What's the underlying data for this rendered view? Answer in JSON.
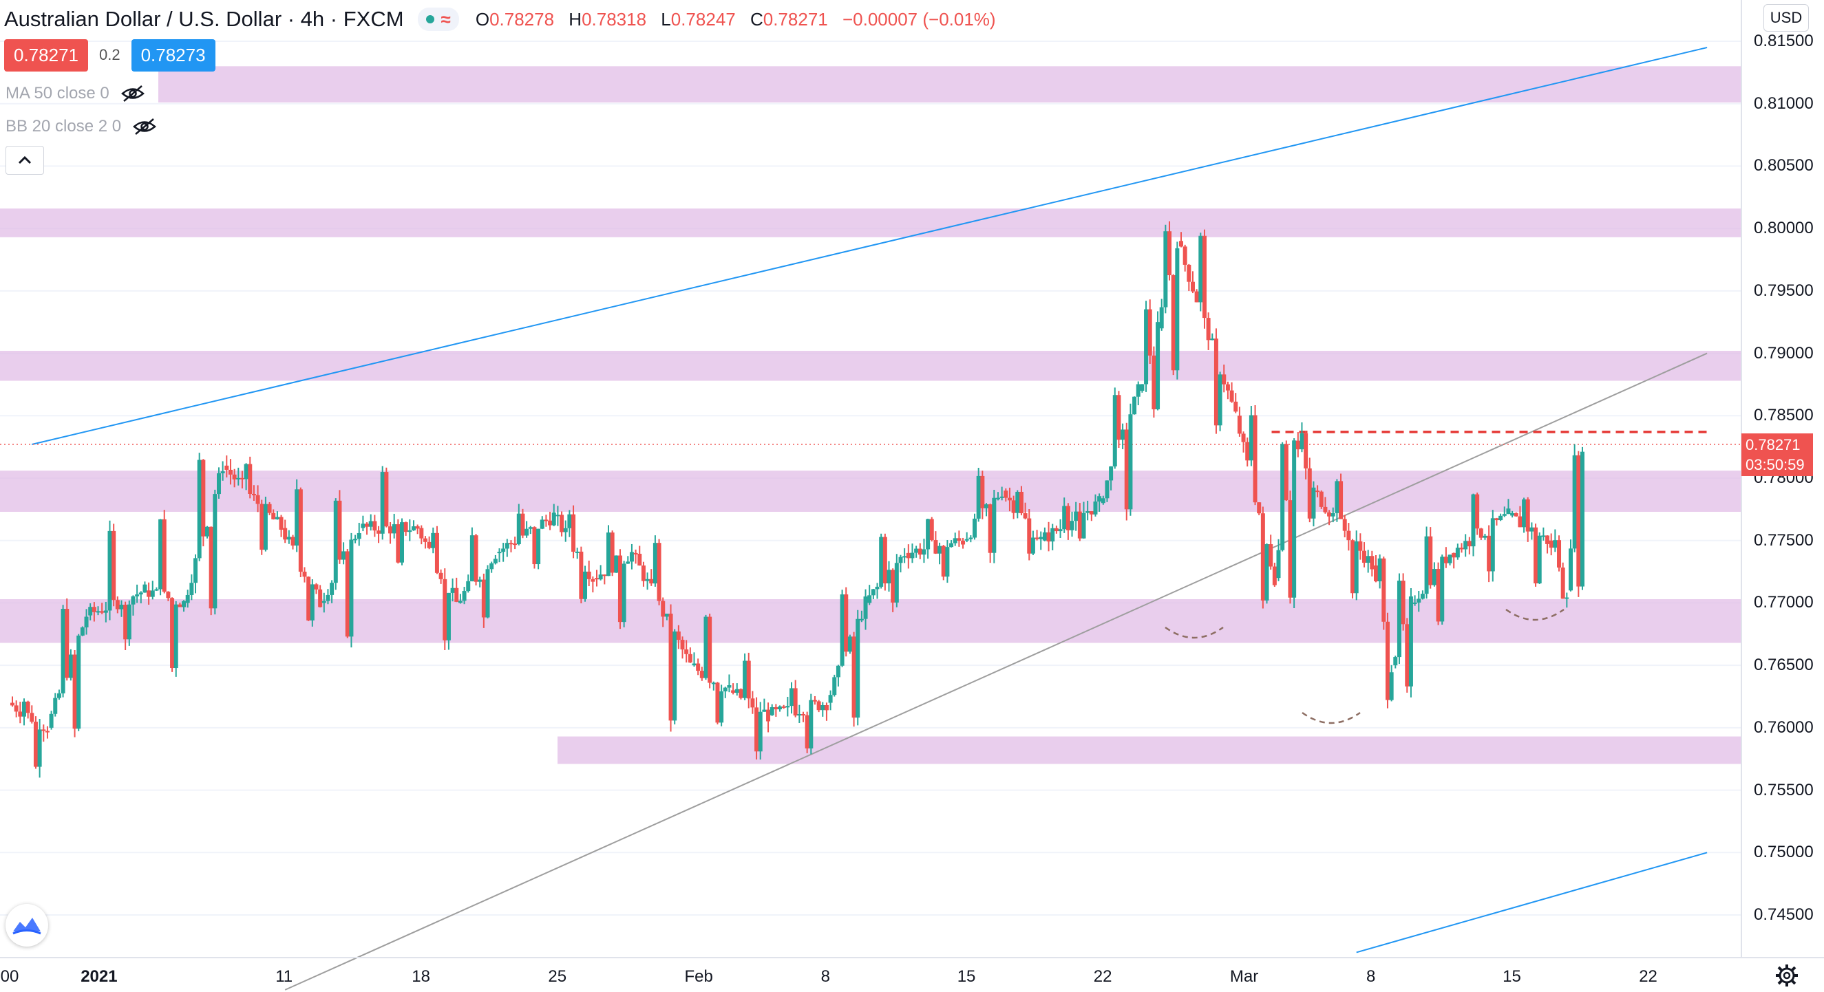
{
  "header": {
    "title": "Australian Dollar / U.S. Dollar · 4h · FXCM",
    "ohlc": {
      "o_label": "O",
      "o": "0.78278",
      "h_label": "H",
      "h": "0.78318",
      "l_label": "L",
      "l": "0.78247",
      "c_label": "C",
      "c": "0.78271",
      "change": "−0.00007 (−0.01%)"
    },
    "status_icon": "market-open-dot",
    "wave_icon": "wave-icon"
  },
  "trade": {
    "sell_price": "0.78271",
    "spread": "0.2",
    "buy_price": "0.78273"
  },
  "indicators": [
    {
      "label": "MA 50 close 0",
      "icon": "eye-hidden-icon"
    },
    {
      "label": "BB 20 close 2 0",
      "icon": "eye-hidden-icon"
    }
  ],
  "currency_button": "USD",
  "last_price": {
    "price": "0.78271",
    "countdown": "03:50:59",
    "color": "#ef5350"
  },
  "price_axis_labels": [
    "0.81500",
    "0.81000",
    "0.80500",
    "0.80000",
    "0.79500",
    "0.79000",
    "0.78500",
    "0.78000",
    "0.77500",
    "0.77000",
    "0.76500",
    "0.76000",
    "0.75500",
    "0.75000",
    "0.74500"
  ],
  "time_axis_labels": [
    ":00",
    "2021",
    "11",
    "18",
    "25",
    "Feb",
    "8",
    "15",
    "22",
    "Mar",
    "8",
    "15",
    "22"
  ],
  "colors": {
    "up": "#26a69a",
    "down": "#ef5350",
    "zone": "#e1bee7",
    "trend_blue": "#2196f3",
    "trend_gray": "#9e9e9e"
  },
  "chart_data": {
    "type": "candlestick",
    "symbol": "AUDUSD",
    "timeframe": "4h",
    "ylim": [
      0.742,
      0.817
    ],
    "resistance_support_zones": [
      [
        0.8101,
        0.813
      ],
      [
        0.7993,
        0.8016
      ],
      [
        0.7878,
        0.7902
      ],
      [
        0.7773,
        0.7806
      ],
      [
        0.7668,
        0.7703
      ],
      [
        0.7571,
        0.7593
      ]
    ],
    "neckline_level": 0.7837,
    "last_price_line": 0.78271,
    "trendlines": [
      {
        "color": "blue",
        "from": [
          "Dec 29",
          0.7827
        ],
        "to": [
          "Mar 25",
          0.8145
        ]
      },
      {
        "color": "gray",
        "from": [
          "Jan 11",
          0.739
        ],
        "to": [
          "Mar 25",
          0.79
        ]
      },
      {
        "color": "blue",
        "from": [
          "Mar 7",
          0.742
        ],
        "to": [
          "Mar 25",
          0.75
        ]
      }
    ],
    "candles_daily_approx": [
      {
        "date": "Dec 28",
        "o": 0.762,
        "h": 0.763,
        "l": 0.756,
        "c": 0.76
      },
      {
        "date": "Dec 30",
        "o": 0.76,
        "h": 0.77,
        "l": 0.759,
        "c": 0.769
      },
      {
        "date": "Jan 1",
        "o": 0.769,
        "h": 0.776,
        "l": 0.766,
        "c": 0.771
      },
      {
        "date": "Jan 4",
        "o": 0.771,
        "h": 0.778,
        "l": 0.764,
        "c": 0.77
      },
      {
        "date": "Jan 6",
        "o": 0.77,
        "h": 0.782,
        "l": 0.769,
        "c": 0.781
      },
      {
        "date": "Jan 8",
        "o": 0.781,
        "h": 0.782,
        "l": 0.774,
        "c": 0.776
      },
      {
        "date": "Jan 11",
        "o": 0.776,
        "h": 0.78,
        "l": 0.768,
        "c": 0.77
      },
      {
        "date": "Jan 13",
        "o": 0.77,
        "h": 0.779,
        "l": 0.767,
        "c": 0.776
      },
      {
        "date": "Jan 15",
        "o": 0.776,
        "h": 0.781,
        "l": 0.772,
        "c": 0.776
      },
      {
        "date": "Jan 18",
        "o": 0.776,
        "h": 0.777,
        "l": 0.766,
        "c": 0.77
      },
      {
        "date": "Jan 20",
        "o": 0.77,
        "h": 0.776,
        "l": 0.768,
        "c": 0.774
      },
      {
        "date": "Jan 22",
        "o": 0.774,
        "h": 0.778,
        "l": 0.772,
        "c": 0.777
      },
      {
        "date": "Jan 25",
        "o": 0.777,
        "h": 0.778,
        "l": 0.77,
        "c": 0.772
      },
      {
        "date": "Jan 27",
        "o": 0.772,
        "h": 0.776,
        "l": 0.768,
        "c": 0.774
      },
      {
        "date": "Jan 29",
        "o": 0.774,
        "h": 0.776,
        "l": 0.76,
        "c": 0.765
      },
      {
        "date": "Feb 1",
        "o": 0.765,
        "h": 0.77,
        "l": 0.76,
        "c": 0.763
      },
      {
        "date": "Feb 3",
        "o": 0.763,
        "h": 0.766,
        "l": 0.757,
        "c": 0.761
      },
      {
        "date": "Feb 5",
        "o": 0.761,
        "h": 0.764,
        "l": 0.758,
        "c": 0.762
      },
      {
        "date": "Feb 8",
        "o": 0.762,
        "h": 0.772,
        "l": 0.76,
        "c": 0.77
      },
      {
        "date": "Feb 10",
        "o": 0.77,
        "h": 0.776,
        "l": 0.769,
        "c": 0.774
      },
      {
        "date": "Feb 12",
        "o": 0.774,
        "h": 0.777,
        "l": 0.771,
        "c": 0.775
      },
      {
        "date": "Feb 15",
        "o": 0.775,
        "h": 0.781,
        "l": 0.773,
        "c": 0.779
      },
      {
        "date": "Feb 17",
        "o": 0.779,
        "h": 0.78,
        "l": 0.773,
        "c": 0.775
      },
      {
        "date": "Feb 19",
        "o": 0.775,
        "h": 0.779,
        "l": 0.774,
        "c": 0.778
      },
      {
        "date": "Feb 22",
        "o": 0.778,
        "h": 0.788,
        "l": 0.777,
        "c": 0.787
      },
      {
        "date": "Feb 24",
        "o": 0.787,
        "h": 0.794,
        "l": 0.785,
        "c": 0.792
      },
      {
        "date": "Feb 25",
        "o": 0.792,
        "h": 0.801,
        "l": 0.788,
        "c": 0.799
      },
      {
        "date": "Feb 26",
        "o": 0.799,
        "h": 0.8,
        "l": 0.783,
        "c": 0.785
      },
      {
        "date": "Mar 1",
        "o": 0.785,
        "h": 0.786,
        "l": 0.769,
        "c": 0.772
      },
      {
        "date": "Mar 3",
        "o": 0.772,
        "h": 0.784,
        "l": 0.77,
        "c": 0.783
      },
      {
        "date": "Mar 4",
        "o": 0.783,
        "h": 0.784,
        "l": 0.776,
        "c": 0.779
      },
      {
        "date": "Mar 5",
        "o": 0.779,
        "h": 0.781,
        "l": 0.77,
        "c": 0.773
      },
      {
        "date": "Mar 8",
        "o": 0.773,
        "h": 0.774,
        "l": 0.762,
        "c": 0.765
      },
      {
        "date": "Mar 9",
        "o": 0.765,
        "h": 0.772,
        "l": 0.762,
        "c": 0.77
      },
      {
        "date": "Mar 10",
        "o": 0.77,
        "h": 0.776,
        "l": 0.768,
        "c": 0.774
      },
      {
        "date": "Mar 12",
        "o": 0.774,
        "h": 0.78,
        "l": 0.772,
        "c": 0.777
      },
      {
        "date": "Mar 15",
        "o": 0.777,
        "h": 0.779,
        "l": 0.771,
        "c": 0.775
      },
      {
        "date": "Mar 17",
        "o": 0.775,
        "h": 0.776,
        "l": 0.77,
        "c": 0.771
      },
      {
        "date": "Mar 18",
        "o": 0.771,
        "h": 0.7832,
        "l": 0.77,
        "c": 0.78271
      }
    ]
  }
}
